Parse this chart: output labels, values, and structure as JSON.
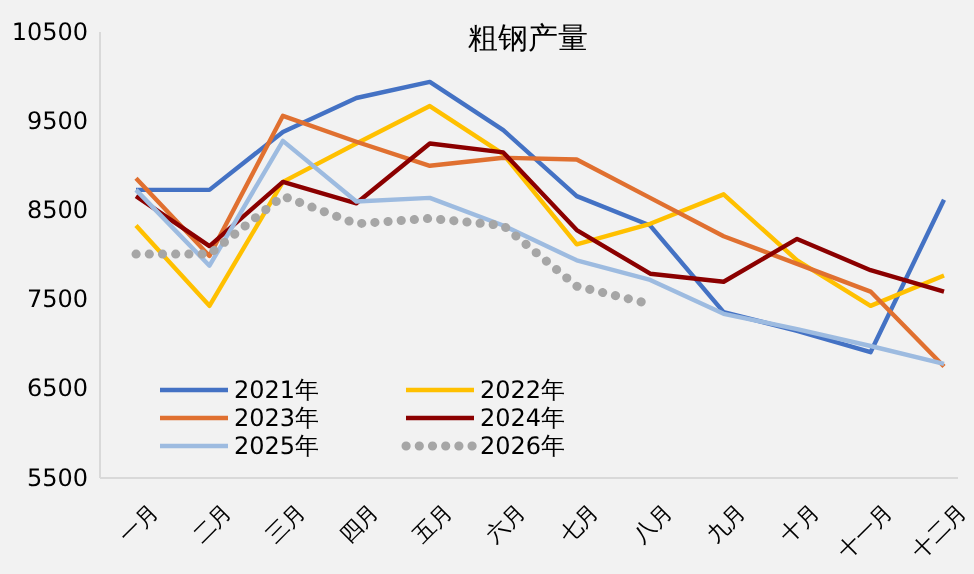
{
  "chart_data": {
    "type": "line",
    "title": "粗钢产量",
    "categories": [
      "一月",
      "二月",
      "三月",
      "四月",
      "五月",
      "六月",
      "七月",
      "八月",
      "九月",
      "十月",
      "十一月",
      "十二月"
    ],
    "ylim": [
      5500,
      10500
    ],
    "yticks": [
      5500,
      6500,
      7500,
      8500,
      9500,
      10500
    ],
    "grid": false,
    "legend": "bottom left",
    "line_style": "solid",
    "series": [
      {
        "name": "2021年",
        "color": "#4472c4",
        "values": [
          8730,
          8730,
          9380,
          9760,
          9940,
          9400,
          8660,
          8330,
          7360,
          7150,
          6910,
          8620
        ]
      },
      {
        "name": "2022年",
        "color": "#ffc000",
        "values": [
          8330,
          7430,
          8820,
          9250,
          9670,
          9130,
          8120,
          8350,
          8680,
          7940,
          7430,
          7770
        ]
      },
      {
        "name": "2023年",
        "color": "#e07030",
        "values": [
          8860,
          7990,
          9560,
          9270,
          9000,
          9090,
          9070,
          8640,
          8210,
          7900,
          7590,
          6750
        ]
      },
      {
        "name": "2024年",
        "color": "#8b0000",
        "values": [
          8660,
          8100,
          8820,
          8580,
          9250,
          9150,
          8280,
          7790,
          7700,
          8180,
          7830,
          7590
        ]
      },
      {
        "name": "2025年",
        "color": "#9dbbe0",
        "values": [
          8730,
          7880,
          9280,
          8600,
          8640,
          8330,
          7940,
          7720,
          7340,
          7170,
          6980,
          6780
        ]
      },
      {
        "name": "2026年",
        "color": "#a6a6a6",
        "line_style": "dotted",
        "values": [
          8010,
          8010,
          8660,
          8350,
          8410,
          8330,
          7650,
          7450,
          null,
          null,
          null,
          null
        ]
      }
    ]
  }
}
